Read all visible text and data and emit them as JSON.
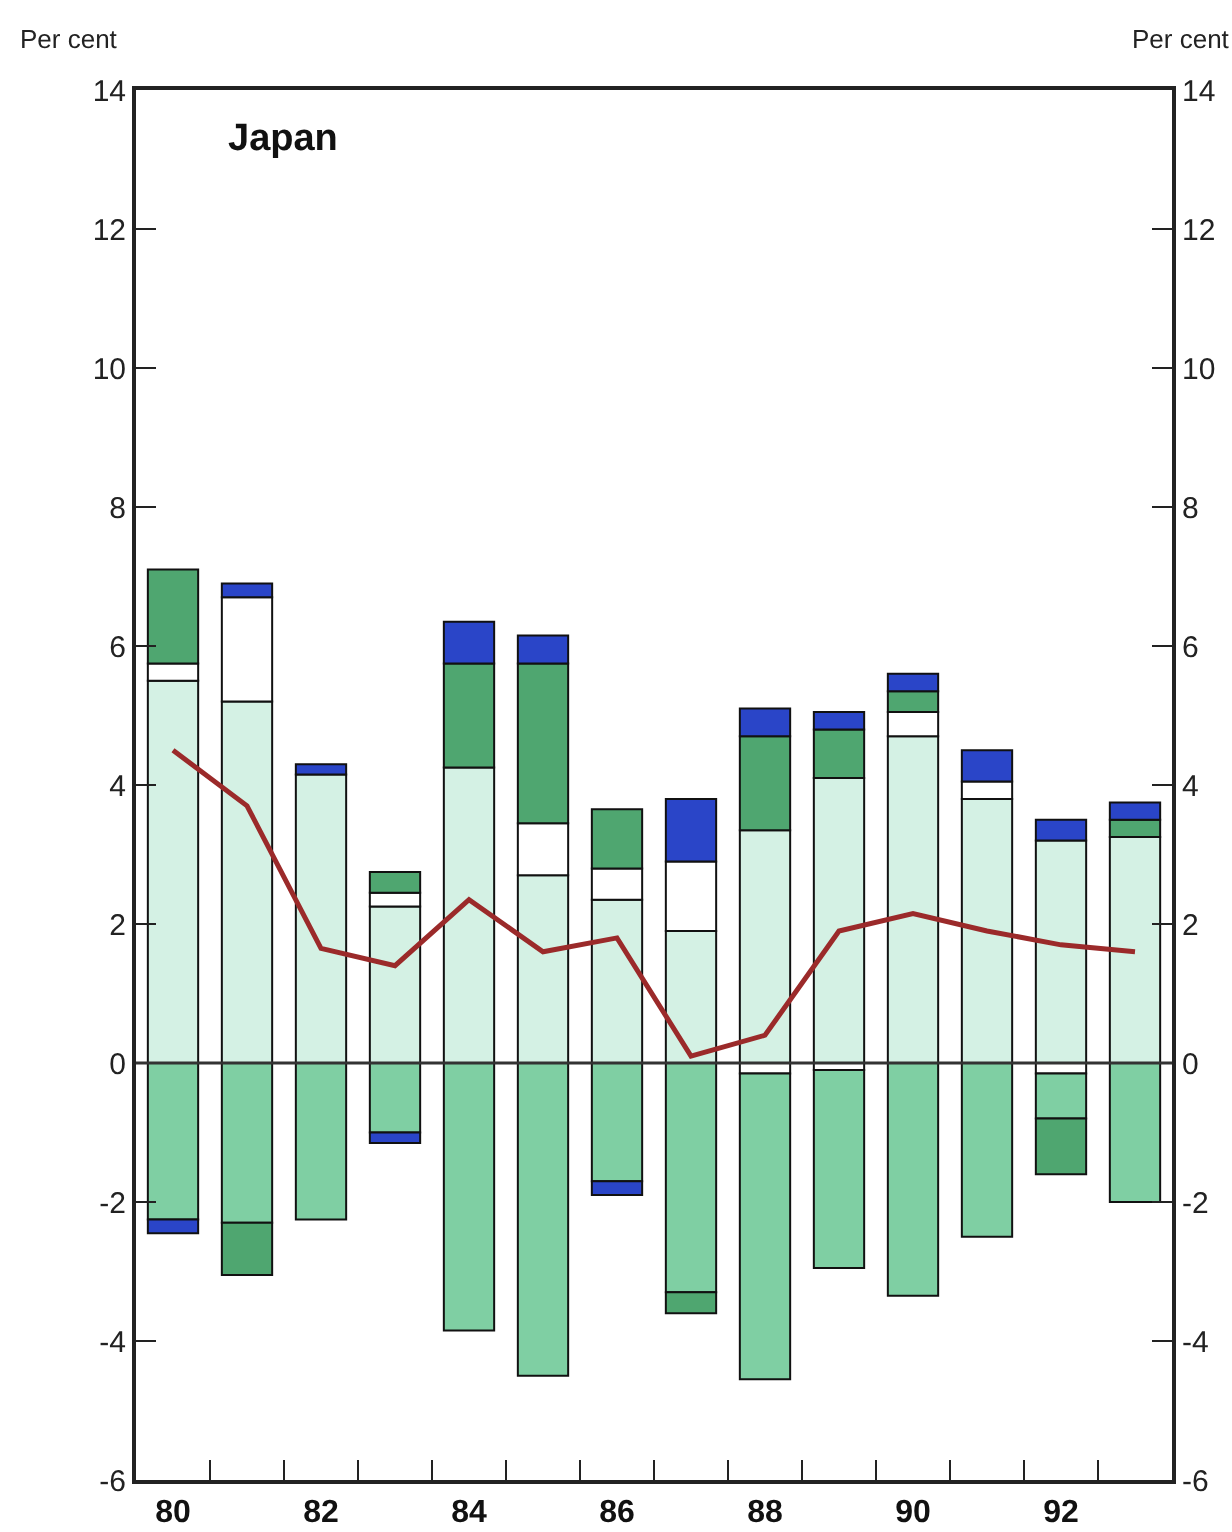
{
  "chart_data": {
    "type": "bar",
    "title": "Japan",
    "ylabel": "Per cent",
    "y2label": "Per cent",
    "stacked": true,
    "x": [
      80,
      81,
      82,
      83,
      84,
      85,
      86,
      87,
      88,
      89,
      90,
      91,
      92,
      93
    ],
    "xlim": [
      79.5,
      93.5
    ],
    "xticks": [
      {
        "value": 80,
        "label": "80"
      },
      {
        "value": 80.5,
        "label": null
      },
      {
        "value": 81.5,
        "label": null
      },
      {
        "value": 82,
        "label": "82"
      },
      {
        "value": 82.5,
        "label": null
      },
      {
        "value": 83.5,
        "label": null
      },
      {
        "value": 84,
        "label": "84"
      },
      {
        "value": 84.5,
        "label": null
      },
      {
        "value": 85.5,
        "label": null
      },
      {
        "value": 86,
        "label": "86"
      },
      {
        "value": 86.5,
        "label": null
      },
      {
        "value": 87.5,
        "label": null
      },
      {
        "value": 88,
        "label": "88"
      },
      {
        "value": 88.5,
        "label": null
      },
      {
        "value": 89.5,
        "label": null
      },
      {
        "value": 90,
        "label": "90"
      },
      {
        "value": 90.5,
        "label": null
      },
      {
        "value": 91.5,
        "label": null
      },
      {
        "value": 92,
        "label": "92"
      },
      {
        "value": 92.5,
        "label": null
      }
    ],
    "ylim": [
      -6,
      14
    ],
    "yticks": [
      -6,
      -4,
      -2,
      0,
      2,
      4,
      6,
      8,
      10,
      12,
      14
    ],
    "y2lim": [
      -6,
      14
    ],
    "y2ticks": [
      -6,
      -4,
      -2,
      0,
      2,
      4,
      6,
      8,
      10,
      12,
      14
    ],
    "ref_lines": [
      {
        "axis": "y",
        "value": 0,
        "color": "#333333"
      }
    ],
    "series": [
      {
        "color": "#d4f1e4",
        "values": [
          5.5,
          5.2,
          4.15,
          2.25,
          4.25,
          2.7,
          2.35,
          1.9,
          3.35,
          4.1,
          4.7,
          3.8,
          3.2,
          3.25
        ]
      },
      {
        "color": "#ffffff",
        "values": [
          0.25,
          1.5,
          null,
          0.2,
          null,
          0.75,
          0.45,
          1.0,
          -0.15,
          -0.1,
          0.35,
          0.25,
          -0.15,
          null
        ]
      },
      {
        "color": "#7fcfa3",
        "values": [
          -2.25,
          -2.3,
          -2.25,
          -1.0,
          -3.85,
          -4.5,
          -1.7,
          -3.3,
          -4.4,
          -2.85,
          -3.35,
          -2.5,
          -0.65,
          -2.0
        ]
      },
      {
        "color": "#4fa670",
        "values": [
          1.35,
          -0.75,
          null,
          0.3,
          1.5,
          2.3,
          0.85,
          -0.3,
          1.35,
          0.7,
          0.3,
          null,
          -0.8,
          0.25
        ]
      },
      {
        "color": "#2a45c8",
        "values": [
          -0.2,
          0.2,
          0.15,
          -0.15,
          0.6,
          0.4,
          -0.2,
          0.9,
          0.4,
          0.25,
          0.25,
          0.45,
          0.3,
          0.25
        ]
      },
      {
        "type": "line",
        "color": "#9b2a2a",
        "values": [
          4.5,
          3.7,
          1.65,
          1.4,
          2.35,
          1.6,
          1.8,
          0.1,
          0.4,
          1.9,
          2.15,
          1.9,
          1.7,
          1.6
        ]
      }
    ]
  }
}
